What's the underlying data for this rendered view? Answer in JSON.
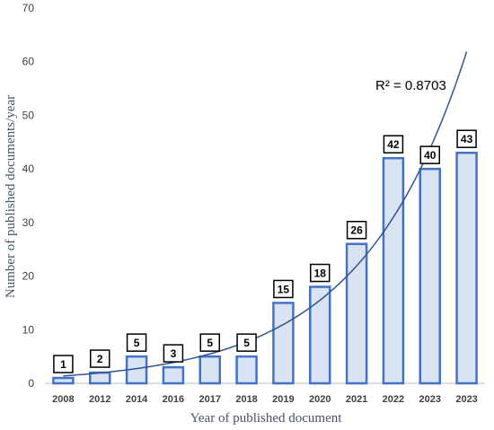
{
  "chart_data": {
    "type": "bar",
    "categories": [
      "2008",
      "2012",
      "2014",
      "2016",
      "2017",
      "2018",
      "2019",
      "2020",
      "2021",
      "2022",
      "2023",
      "2023"
    ],
    "values": [
      1,
      2,
      5,
      3,
      5,
      5,
      15,
      18,
      26,
      42,
      40,
      43
    ],
    "title": "",
    "xlabel": "Year of published document",
    "ylabel": "Number of published documents/year",
    "ylim": [
      0,
      70
    ],
    "yticks": [
      0,
      10,
      20,
      30,
      40,
      50,
      60,
      70
    ],
    "grid": false,
    "legend": "none",
    "trendline": {
      "type": "exponential",
      "label": "R² = 0.8703"
    },
    "colors": {
      "bar_fill": "#dae3f3",
      "bar_stroke": "#4472c4",
      "trendline": "#2f5597",
      "axis_title": "#44546a",
      "tick_text": "#404040"
    }
  }
}
